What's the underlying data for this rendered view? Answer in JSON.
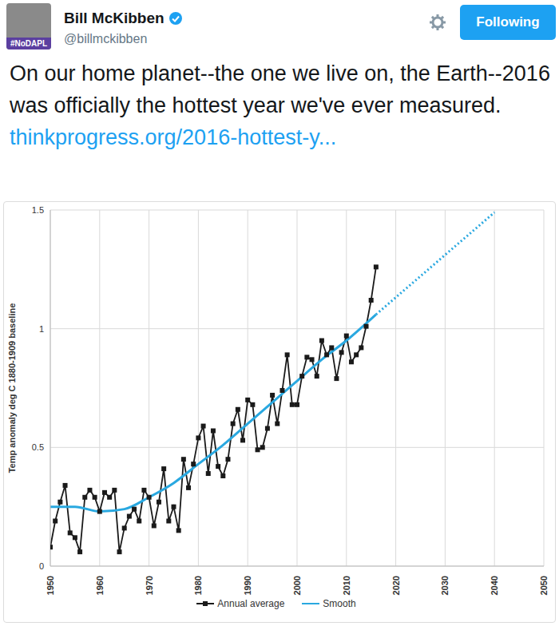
{
  "tweet": {
    "name": "Bill McKibben",
    "handle": "@billmckibben",
    "avatar_tag": "#NoDAPL",
    "button": "Following",
    "text": "On our home planet--the one we live on, the Earth--2016 was officially the hottest year we've ever measured.",
    "link": "thinkprogress.org/2016-hottest-y..."
  },
  "chart_data": {
    "type": "line",
    "y_label": "Temp anomaly deg C 1880-1909 baseline",
    "xlim": [
      1950,
      2050
    ],
    "xticks": [
      1950,
      1960,
      1970,
      1980,
      1990,
      2000,
      2010,
      2020,
      2030,
      2040,
      2050
    ],
    "ylim": [
      0,
      1.5
    ],
    "yticks": [
      0,
      0.5,
      1,
      1.5
    ],
    "grid": true,
    "legend": "bottom",
    "series": [
      {
        "name": "Annual average",
        "color": "#1a1a1a",
        "marker": "square",
        "line_style": "solid",
        "x": [
          1950,
          1951,
          1952,
          1953,
          1954,
          1955,
          1956,
          1957,
          1958,
          1959,
          1960,
          1961,
          1962,
          1963,
          1964,
          1965,
          1966,
          1967,
          1968,
          1969,
          1970,
          1971,
          1972,
          1973,
          1974,
          1975,
          1976,
          1977,
          1978,
          1979,
          1980,
          1981,
          1982,
          1983,
          1984,
          1985,
          1986,
          1987,
          1988,
          1989,
          1990,
          1991,
          1992,
          1993,
          1994,
          1995,
          1996,
          1997,
          1998,
          1999,
          2000,
          2001,
          2002,
          2003,
          2004,
          2005,
          2006,
          2007,
          2008,
          2009,
          2010,
          2011,
          2012,
          2013,
          2014,
          2015,
          2016
        ],
        "values": [
          0.08,
          0.19,
          0.27,
          0.34,
          0.14,
          0.12,
          0.06,
          0.29,
          0.32,
          0.29,
          0.23,
          0.31,
          0.29,
          0.32,
          0.06,
          0.16,
          0.21,
          0.24,
          0.19,
          0.32,
          0.29,
          0.17,
          0.27,
          0.41,
          0.19,
          0.25,
          0.15,
          0.45,
          0.33,
          0.43,
          0.54,
          0.59,
          0.39,
          0.57,
          0.42,
          0.38,
          0.45,
          0.6,
          0.66,
          0.53,
          0.7,
          0.68,
          0.49,
          0.5,
          0.58,
          0.72,
          0.6,
          0.74,
          0.89,
          0.68,
          0.68,
          0.8,
          0.88,
          0.87,
          0.8,
          0.95,
          0.89,
          0.92,
          0.79,
          0.9,
          0.97,
          0.86,
          0.89,
          0.92,
          1.01,
          1.12,
          1.26
        ]
      },
      {
        "name": "Smooth",
        "color": "#29a8e0",
        "line_style": "solid",
        "x": [
          1950,
          1955,
          1960,
          1965,
          1970,
          1975,
          1980,
          1985,
          1990,
          1995,
          2000,
          2005,
          2010,
          2016
        ],
        "values": [
          0.25,
          0.25,
          0.23,
          0.24,
          0.29,
          0.35,
          0.43,
          0.51,
          0.6,
          0.69,
          0.78,
          0.87,
          0.95,
          1.06
        ]
      },
      {
        "color": "#29a8e0",
        "line_style": "dotted",
        "x": [
          2016,
          2040
        ],
        "values": [
          1.06,
          1.49
        ]
      }
    ]
  }
}
